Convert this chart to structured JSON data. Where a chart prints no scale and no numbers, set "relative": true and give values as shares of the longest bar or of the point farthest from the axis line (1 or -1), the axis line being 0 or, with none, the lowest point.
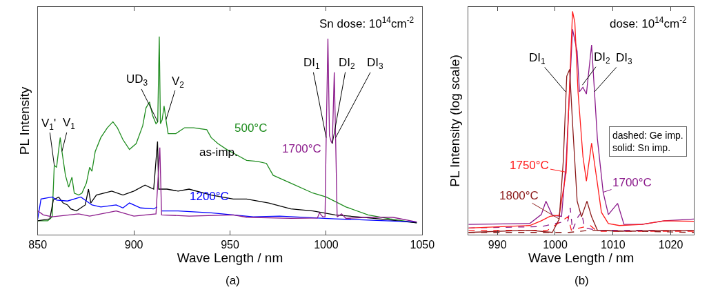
{
  "chart_data": [
    {
      "type": "line",
      "relative": true,
      "xlabel": "Wave Length / nm",
      "ylabel": "PL Intensity",
      "xlim": [
        850,
        1050
      ],
      "xticks": [
        850,
        900,
        950,
        1000,
        1050
      ],
      "series": [
        {
          "name": "500°C",
          "color": "#1e8c1e",
          "x": [
            850,
            855.2,
            857.5,
            858.6,
            859.8,
            860.9,
            861.7,
            862.6,
            864.4,
            866.1,
            867.8,
            869.0,
            871.3,
            873.0,
            875.3,
            877.0,
            878.2,
            879.9,
            882.8,
            886.2,
            889.1,
            891.4,
            894.3,
            897.7,
            901.2,
            904.6,
            906.3,
            908.1,
            909.8,
            911.5,
            912.4,
            913.2,
            913.8,
            914.7,
            915.7,
            916.7,
            917.8,
            921.8,
            926.4,
            931.0,
            937.9,
            940.2,
            943.7,
            948.3,
            954.0,
            958.6,
            964.3,
            968.9,
            972.4,
            981.6,
            993.1,
            1000.0,
            1010.3,
            1021.8,
            1033.3,
            1047.1
          ],
          "values": [
            0.07,
            0.07,
            0.09,
            0.35,
            0.34,
            0.43,
            0.49,
            0.42,
            0.3,
            0.24,
            0.29,
            0.21,
            0.2,
            0.21,
            0.26,
            0.34,
            0.32,
            0.42,
            0.49,
            0.54,
            0.57,
            0.54,
            0.48,
            0.43,
            0.46,
            0.55,
            0.64,
            0.67,
            0.6,
            0.56,
            0.57,
            1.0,
            0.56,
            0.58,
            0.65,
            0.58,
            0.51,
            0.51,
            0.54,
            0.54,
            0.53,
            0.49,
            0.46,
            0.43,
            0.4,
            0.375,
            0.37,
            0.36,
            0.3,
            0.26,
            0.21,
            0.19,
            0.14,
            0.1,
            0.08,
            0.06
          ]
        },
        {
          "name": "as-imp.",
          "color": "#000000",
          "x": [
            850,
            856.3,
            858.1,
            860.9,
            863.2,
            865.5,
            867.2,
            870.1,
            874.7,
            876.4,
            877.6,
            880.5,
            888.5,
            894.3,
            900.0,
            905.8,
            910.3,
            912.3,
            912.9,
            917.2,
            923.0,
            928.7,
            940.2,
            951.7,
            958.6,
            970.1,
            981.6,
            993.1,
            1004.6,
            1016.1,
            1027.6,
            1047.1
          ],
          "values": [
            0.07,
            0.08,
            0.175,
            0.19,
            0.16,
            0.15,
            0.13,
            0.12,
            0.15,
            0.23,
            0.16,
            0.2,
            0.22,
            0.2,
            0.22,
            0.25,
            0.23,
            0.47,
            0.23,
            0.23,
            0.22,
            0.23,
            0.2,
            0.18,
            0.18,
            0.16,
            0.13,
            0.12,
            0.1,
            0.09,
            0.08,
            0.06
          ]
        },
        {
          "name": "1200°C",
          "color": "#0000ff",
          "x": [
            850,
            851.7,
            857.5,
            859.8,
            865.5,
            872.4,
            878.2,
            882.8,
            890.8,
            894.3,
            897.7,
            903.5,
            910.3,
            912.1,
            913.5,
            914.4,
            923.0,
            940.2,
            962.1,
            975.8,
            1004.6,
            1047.1
          ],
          "values": [
            0.08,
            0.18,
            0.19,
            0.175,
            0.17,
            0.19,
            0.15,
            0.14,
            0.15,
            0.135,
            0.16,
            0.135,
            0.13,
            0.14,
            null,
            0.12,
            0.12,
            0.11,
            0.09,
            0.094,
            0.08,
            0.064
          ]
        },
        {
          "name": "1700°C",
          "color": "#8b1a8b",
          "x": [
            850,
            852.9,
            857.5,
            871.3,
            877.0,
            890.8,
            900.0,
            911.5,
            913.5,
            914.4,
            928.7,
            951.7,
            958.6,
            981.6,
            995.4,
            996.5,
            998.2,
            999.4,
            1000.0,
            1000.9,
            1001.7,
            1002.6,
            1003.2,
            1004.2,
            1004.9,
            1005.7,
            1008.0,
            1010.3,
            1021.8,
            1034.5,
            1047.1
          ],
          "values": [
            0.12,
            0.1,
            0.09,
            0.105,
            0.094,
            0.12,
            0.094,
            0.105,
            0.44,
            0.1,
            0.094,
            0.1,
            0.088,
            0.082,
            0.084,
            0.11,
            0.09,
            0.09,
            0.49,
            0.99,
            0.5,
            0.47,
            0.46,
            0.82,
            0.49,
            0.09,
            0.105,
            0.082,
            0.088,
            0.088,
            0.064
          ]
        }
      ],
      "annotations": [
        "Sn dose: 10$^{14}$cm$^{-2}$",
        {
          "text": "V$_{1}$'",
          "x": 858.6,
          "y": 0.35
        },
        {
          "text": "V$_{1}$",
          "x": 862.6,
          "y": 0.42
        },
        {
          "text": "UD$_{3}$",
          "x": 912.4,
          "y": 0.57
        },
        {
          "text": "V$_{2}$",
          "x": 916.7,
          "y": 0.58
        },
        {
          "text": "DI$_{1}$",
          "x": 1000.0,
          "y": 0.49
        },
        {
          "text": "DI$_{2}$",
          "x": 1003.2,
          "y": 0.46
        },
        {
          "text": "DI$_{3}$",
          "x": 1004.9,
          "y": 0.49
        },
        "(a)"
      ]
    },
    {
      "type": "line",
      "relative": true,
      "xlabel": "Wave Length / nm",
      "ylabel": "PL Intensity (log scale)",
      "xlim": [
        985,
        1024
      ],
      "xticks": [
        990,
        1000,
        1010,
        1020
      ],
      "series": [
        {
          "color": "#8b1a8b",
          "line_style": "dashed",
          "x": [
            985,
            997.6,
            1002.2,
            1002.6,
            1003.0,
            1003.95,
            1004.55,
            1005.1,
            1007.3,
            1018.9,
            1024
          ],
          "values": [
            0.03,
            0.036,
            0.062,
            0.12,
            0.02,
            0.08,
            0.1,
            0.03,
            0.02,
            0.02,
            0.02
          ]
        },
        {
          "color": "#ff1a1a",
          "line_style": "dashed",
          "x": [
            985,
            998.7,
            1002.2,
            1002.8,
            1004.2,
            1006.1,
            1007.3,
            1024
          ],
          "values": [
            0.02,
            0.02,
            0.08,
            0.02,
            0.03,
            0.04,
            0.015,
            0.015
          ]
        },
        {
          "color": "#8b1a1a",
          "line_style": "dashed",
          "x": [
            985,
            1002.4,
            1006.1,
            1024
          ],
          "values": [
            0.01,
            0.01,
            0.02,
            0.01
          ]
        },
        {
          "name": "1700°C",
          "color": "#8b1a8b",
          "line_style": "solid",
          "x": [
            985,
            995.6,
            997.6,
            998.4,
            999.5,
            1001.1,
            1001.9,
            1003.0,
            1003.8,
            1004.2,
            1004.8,
            1005.4,
            1006.3,
            1007.3,
            1008.3,
            1009.2,
            1010.8,
            1011.9,
            1015.0,
            1018.9,
            1024
          ],
          "values": [
            0.046,
            0.05,
            0.09,
            0.15,
            0.087,
            0.082,
            0.33,
            0.92,
            0.82,
            0.64,
            0.66,
            0.63,
            0.85,
            0.43,
            0.19,
            0.09,
            0.14,
            0.046,
            0.046,
            0.062,
            0.07
          ]
        },
        {
          "name": "1750°C",
          "color": "#ff1a1a",
          "line_style": "solid",
          "x": [
            985,
            995.6,
            997.6,
            999.1,
            1000.7,
            1001.9,
            1002.6,
            1003.0,
            1003.4,
            1003.95,
            1004.8,
            1005.4,
            1006.3,
            1007.3,
            1008.0,
            1009.2,
            1011.1,
            1015.0,
            1018.9,
            1024
          ],
          "values": [
            0.03,
            0.041,
            0.062,
            0.082,
            0.087,
            0.28,
            0.74,
            1.0,
            0.95,
            0.64,
            0.35,
            0.24,
            0.41,
            0.23,
            0.1,
            0.05,
            0.041,
            0.046,
            0.062,
            0.06
          ]
        },
        {
          "name": "1800°C",
          "color": "#8b1a1a",
          "line_style": "solid",
          "x": [
            985,
            995.6,
            999.5,
            1000.7,
            1001.4,
            1002.0,
            1002.5,
            1003.0,
            1003.8,
            1004.55,
            1005.5,
            1006.3,
            1007.3,
            1011.1,
            1018.9,
            1024
          ],
          "values": [
            0.01,
            0.02,
            0.01,
            0.07,
            0.33,
            0.71,
            0.74,
            0.5,
            0.15,
            0.08,
            0.15,
            0.08,
            0.02,
            0.015,
            0.02,
            0.02
          ]
        }
      ],
      "annotations": [
        "dose: 10$^{14}$cm$^{-2}$",
        {
          "text": "DI$_{1}$",
          "x": 1001.8,
          "y": 0.64
        },
        {
          "text": "DI$_{2}$",
          "x": 1004.7,
          "y": 0.67
        },
        {
          "text": "DI$_{3}$",
          "x": 1006.8,
          "y": 0.64
        },
        "dashed: Ge imp.\nsolid: Sn imp.",
        "(b)"
      ]
    }
  ]
}
